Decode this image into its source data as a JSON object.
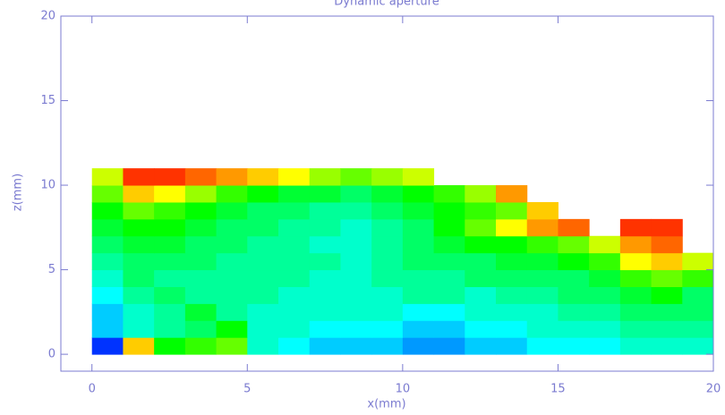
{
  "chart_data": {
    "type": "heatmap",
    "title": "Dynamic aperture",
    "x_label": "x(mm)",
    "y_label": "z(mm)",
    "xlim": [
      -1,
      20
    ],
    "ylim": [
      -1,
      20
    ],
    "xticks": [
      0,
      5,
      10,
      15,
      20
    ],
    "yticks": [
      0,
      5,
      10,
      15,
      20
    ],
    "xbins": [
      0,
      1,
      2,
      3,
      4,
      5,
      6,
      7,
      8,
      9,
      10,
      11,
      12,
      13,
      14,
      15,
      16,
      17,
      18,
      19,
      20
    ],
    "ybins": [
      0,
      1,
      2,
      3,
      4,
      5,
      6,
      7,
      8,
      9,
      10,
      11
    ],
    "axis_color": "#7b7bd0",
    "colormap": "rainbow",
    "values": [
      [
        0.05,
        0.8,
        0.5,
        0.55,
        0.6,
        0.3,
        0.25,
        0.2,
        0.2,
        0.2,
        0.15,
        0.15,
        0.2,
        0.2,
        0.25,
        0.25,
        0.25,
        0.3,
        0.3,
        0.3
      ],
      [
        0.2,
        0.3,
        0.35,
        0.4,
        0.5,
        0.3,
        0.3,
        0.25,
        0.25,
        0.25,
        0.2,
        0.2,
        0.25,
        0.25,
        0.3,
        0.3,
        0.3,
        0.35,
        0.35,
        0.35
      ],
      [
        0.2,
        0.3,
        0.35,
        0.45,
        0.35,
        0.3,
        0.3,
        0.3,
        0.3,
        0.3,
        0.25,
        0.25,
        0.3,
        0.3,
        0.3,
        0.35,
        0.35,
        0.4,
        0.4,
        0.4
      ],
      [
        0.25,
        0.35,
        0.4,
        0.35,
        0.35,
        0.35,
        0.3,
        0.3,
        0.3,
        0.3,
        0.35,
        0.35,
        0.3,
        0.35,
        0.35,
        0.4,
        0.4,
        0.45,
        0.5,
        0.4
      ],
      [
        0.3,
        0.4,
        0.35,
        0.35,
        0.35,
        0.35,
        0.35,
        0.3,
        0.3,
        0.35,
        0.35,
        0.35,
        0.4,
        0.4,
        0.4,
        0.4,
        0.45,
        0.55,
        0.6,
        0.55
      ],
      [
        0.35,
        0.4,
        0.4,
        0.4,
        0.35,
        0.35,
        0.35,
        0.35,
        0.3,
        0.35,
        0.4,
        0.4,
        0.4,
        0.45,
        0.45,
        0.5,
        0.55,
        0.75,
        0.8,
        0.7
      ],
      [
        0.4,
        0.45,
        0.45,
        0.4,
        0.4,
        0.35,
        0.35,
        0.3,
        0.3,
        0.35,
        0.4,
        0.45,
        0.5,
        0.5,
        0.55,
        0.6,
        0.7,
        0.85,
        0.9,
        null
      ],
      [
        0.45,
        0.5,
        0.5,
        0.45,
        0.4,
        0.4,
        0.35,
        0.35,
        0.3,
        0.35,
        0.4,
        0.5,
        0.6,
        0.75,
        0.85,
        0.9,
        null,
        0.95,
        0.95,
        null
      ],
      [
        0.5,
        0.6,
        0.55,
        0.5,
        0.45,
        0.4,
        0.4,
        0.35,
        0.35,
        0.4,
        0.45,
        0.5,
        0.55,
        0.6,
        0.8,
        null,
        null,
        null,
        null,
        null
      ],
      [
        0.6,
        0.8,
        0.75,
        0.65,
        0.55,
        0.5,
        0.45,
        0.45,
        0.4,
        0.45,
        0.5,
        0.55,
        0.65,
        0.85,
        null,
        null,
        null,
        null,
        null,
        null
      ],
      [
        0.7,
        0.95,
        0.95,
        0.9,
        0.85,
        0.8,
        0.75,
        0.65,
        0.6,
        0.65,
        0.7,
        null,
        null,
        null,
        null,
        null,
        null,
        null,
        null,
        null
      ]
    ]
  }
}
